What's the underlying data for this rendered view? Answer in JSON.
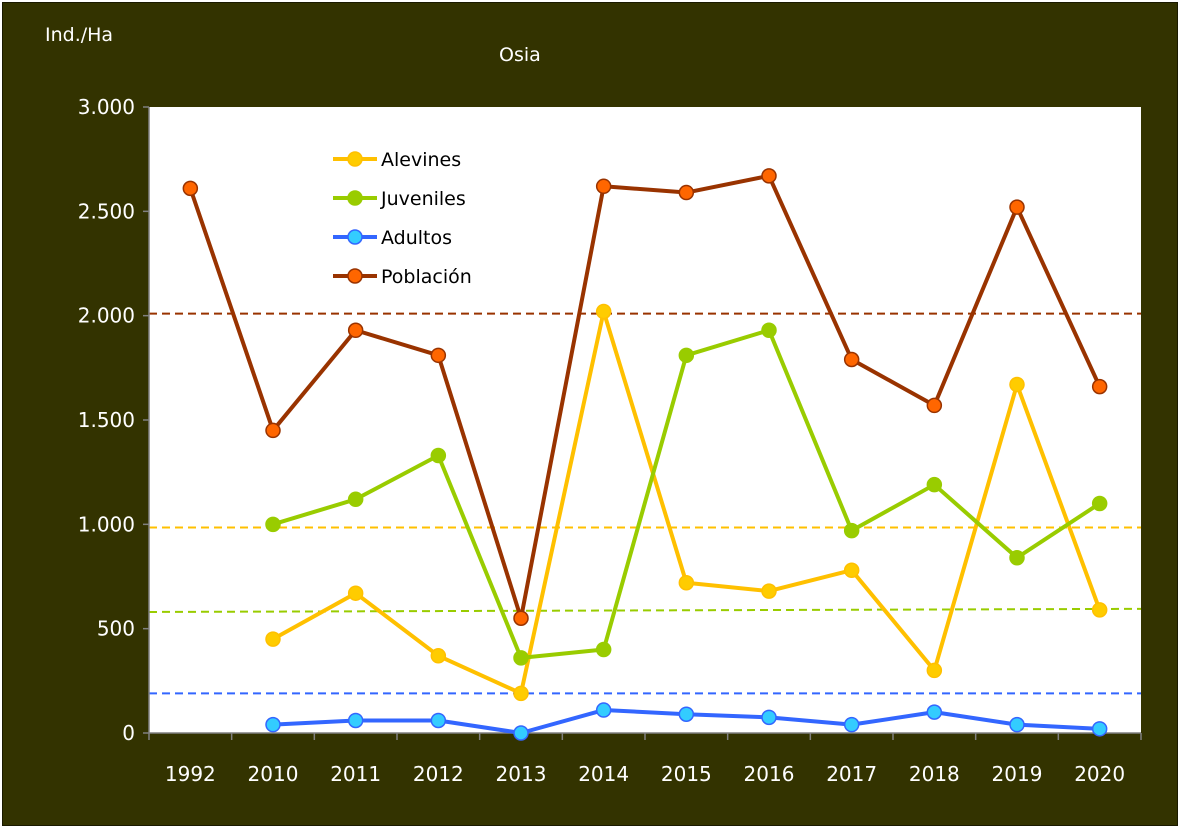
{
  "chart_data": {
    "type": "line",
    "title": "Osia",
    "ylabel": "Ind./Ha",
    "xlabel": "",
    "categories": [
      "1992",
      "2010",
      "2011",
      "2012",
      "2013",
      "2014",
      "2015",
      "2016",
      "2017",
      "2018",
      "2019",
      "2020"
    ],
    "ylim": [
      0,
      3000
    ],
    "yticks": [
      0,
      500,
      1000,
      1500,
      2000,
      2500,
      3000
    ],
    "ytick_labels": [
      "0",
      "500",
      "1.000",
      "1.500",
      "2.000",
      "2.500",
      "3.000"
    ],
    "grid": false,
    "legend_position": "top-left",
    "series": [
      {
        "name": "Alevines",
        "color": "#ffc000",
        "marker_color": "#ffcc00",
        "values": [
          null,
          450,
          670,
          370,
          190,
          2020,
          720,
          680,
          780,
          300,
          1670,
          590
        ]
      },
      {
        "name": "Juveniles",
        "color": "#99cc00",
        "marker_color": "#99cc00",
        "values": [
          null,
          1000,
          1120,
          1330,
          360,
          400,
          1810,
          1930,
          970,
          1190,
          840,
          1100
        ]
      },
      {
        "name": "Adultos",
        "color": "#3366ff",
        "marker_color": "#33ccff",
        "values": [
          null,
          40,
          60,
          60,
          0,
          110,
          90,
          75,
          40,
          100,
          40,
          20
        ]
      },
      {
        "name": "Población",
        "color": "#993300",
        "marker_color": "#ff6600",
        "values": [
          2610,
          1450,
          1930,
          1810,
          550,
          2620,
          2590,
          2670,
          1790,
          1570,
          2520,
          1660
        ]
      }
    ],
    "reference_lines": [
      {
        "value": 2010,
        "color": "#993300",
        "end_value": 2010
      },
      {
        "value": 985,
        "color": "#ffc000",
        "end_value": 985
      },
      {
        "value": 580,
        "color": "#99cc00",
        "end_value": 595
      },
      {
        "value": 190,
        "color": "#3366ff",
        "end_value": 190
      }
    ],
    "colors": {
      "background": "#333300",
      "plot_area": "#ffffff"
    }
  }
}
